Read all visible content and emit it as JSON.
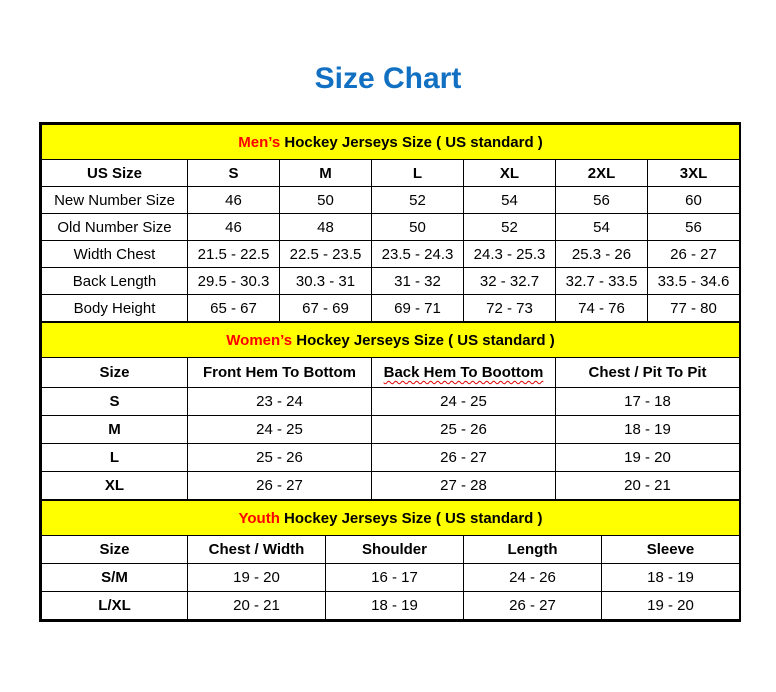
{
  "page": {
    "title": "Size Chart"
  },
  "colors": {
    "title_blue": "#1170C2",
    "section_band_yellow": "#FFFF00",
    "accent_red": "#FF0000",
    "border_black": "#000000",
    "background": "#FFFFFF"
  },
  "sections": [
    {
      "id": "mens",
      "title_accent": "Men’s",
      "title_rest": "Hockey Jerseys Size ( US standard )",
      "columns": [
        {
          "label": "US Size"
        },
        {
          "label": "S"
        },
        {
          "label": "M"
        },
        {
          "label": "L"
        },
        {
          "label": "XL"
        },
        {
          "label": "2XL"
        },
        {
          "label": "3XL"
        }
      ],
      "rows": [
        {
          "label": "New Number Size",
          "values": [
            "46",
            "50",
            "52",
            "54",
            "56",
            "60"
          ]
        },
        {
          "label": "Old Number Size",
          "values": [
            "46",
            "48",
            "50",
            "52",
            "54",
            "56"
          ]
        },
        {
          "label": "Width Chest",
          "values": [
            "21.5 - 22.5",
            "22.5 - 23.5",
            "23.5 - 24.3",
            "24.3 - 25.3",
            "25.3 - 26",
            "26 - 27"
          ]
        },
        {
          "label": "Back Length",
          "values": [
            "29.5 - 30.3",
            "30.3 - 31",
            "31 - 32",
            "32 - 32.7",
            "32.7 - 33.5",
            "33.5 - 34.6"
          ]
        },
        {
          "label": "Body Height",
          "values": [
            "65 - 67",
            "67 - 69",
            "69 - 71",
            "72 - 73",
            "74 - 76",
            "77 - 80"
          ]
        }
      ]
    },
    {
      "id": "womens",
      "title_accent": "Women’s",
      "title_rest": "Hockey Jerseys Size ( US standard )",
      "columns": [
        {
          "label": "Size"
        },
        {
          "label": "Front Hem To Bottom"
        },
        {
          "label": "Back Hem To Boottom",
          "squiggle": true
        },
        {
          "label": "Chest / Pit To Pit"
        }
      ],
      "rows": [
        {
          "label": "S",
          "values": [
            "23 - 24",
            "24 - 25",
            "17 - 18"
          ]
        },
        {
          "label": "M",
          "values": [
            "24 - 25",
            "25 - 26",
            "18 - 19"
          ]
        },
        {
          "label": "L",
          "values": [
            "25 - 26",
            "26 - 27",
            "19 - 20"
          ]
        },
        {
          "label": "XL",
          "values": [
            "26 - 27",
            "27 - 28",
            "20 - 21"
          ]
        }
      ]
    },
    {
      "id": "youth",
      "title_accent": "Youth",
      "title_rest": "Hockey Jerseys Size ( US standard )",
      "columns": [
        {
          "label": "Size"
        },
        {
          "label": "Chest / Width"
        },
        {
          "label": "Shoulder"
        },
        {
          "label": "Length"
        },
        {
          "label": "Sleeve"
        }
      ],
      "rows": [
        {
          "label": "S/M",
          "values": [
            "19 - 20",
            "16 - 17",
            "24 - 26",
            "18 - 19"
          ]
        },
        {
          "label": "L/XL",
          "values": [
            "20 - 21",
            "18 - 19",
            "26 - 27",
            "19 - 20"
          ]
        }
      ]
    }
  ]
}
